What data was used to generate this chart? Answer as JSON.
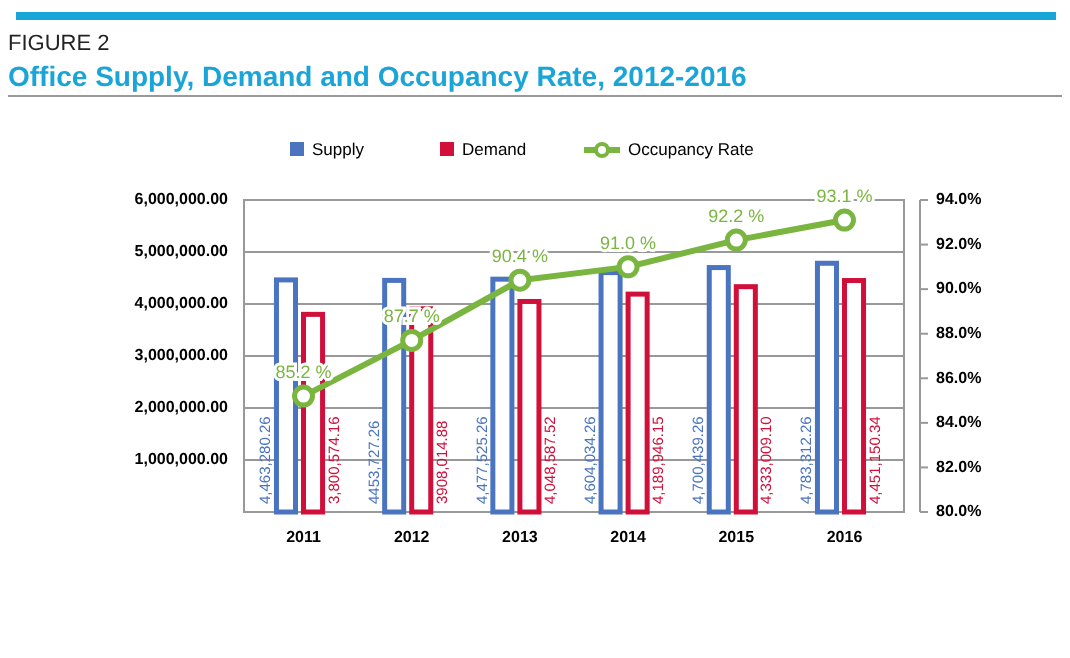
{
  "chart_data": {
    "type": "bar",
    "subtitle": "FIGURE 2",
    "title": "Office Supply, Demand and Occupancy Rate, 2012-2016",
    "categories": [
      "2011",
      "2012",
      "2013",
      "2014",
      "2015",
      "2016"
    ],
    "series": [
      {
        "name": "Supply",
        "color": "#4a74c0",
        "values": [
          4463280.26,
          4453727.26,
          4477525.26,
          4604034.26,
          4700439.26,
          4783312.26
        ],
        "value_labels": [
          "4,463,280.26",
          "4453,727.26",
          "4,477,525.26",
          "4,604,034.26",
          "4,700,439.26",
          "4,783,312.26"
        ]
      },
      {
        "name": "Demand",
        "color": "#d0103a",
        "values": [
          3800574.16,
          3908014.88,
          4048587.52,
          4189946.15,
          4333009.1,
          4451150.34
        ],
        "value_labels": [
          "3,800,574.16",
          "3908,014.88",
          "4,048,587.52",
          "4,189,946.15",
          "4,333,009.10",
          "4,451,150.34"
        ]
      },
      {
        "name": "Occupancy Rate",
        "type": "line",
        "axis": "y2",
        "color": "#7ab540",
        "values": [
          85.2,
          87.7,
          90.4,
          91.0,
          92.2,
          93.1
        ],
        "value_labels": [
          "85.2 %",
          "87.7 %",
          "90.4 %",
          "91.0 %",
          "92.2 %",
          "93.1 %"
        ]
      }
    ],
    "ylim": [
      0,
      6000000
    ],
    "yticks": [
      {
        "value": 1000000,
        "label": "1,000,000.00"
      },
      {
        "value": 2000000,
        "label": "2,000,000.00"
      },
      {
        "value": 3000000,
        "label": "3,000,000.00"
      },
      {
        "value": 4000000,
        "label": "4,000,000.00"
      },
      {
        "value": 5000000,
        "label": "5,000,000.00"
      },
      {
        "value": 6000000,
        "label": "6,000,000.00"
      }
    ],
    "y2lim": [
      80,
      94
    ],
    "y2ticks": [
      {
        "value": 80,
        "label": "80.0%"
      },
      {
        "value": 82,
        "label": "82.0%"
      },
      {
        "value": 84,
        "label": "84.0%"
      },
      {
        "value": 86,
        "label": "86.0%"
      },
      {
        "value": 88,
        "label": "88.0%"
      },
      {
        "value": 90,
        "label": "90.0%"
      },
      {
        "value": 92,
        "label": "92.0%"
      },
      {
        "value": 94,
        "label": "94.0%"
      }
    ],
    "grid": "y",
    "legend": "top",
    "marker": "circle"
  }
}
